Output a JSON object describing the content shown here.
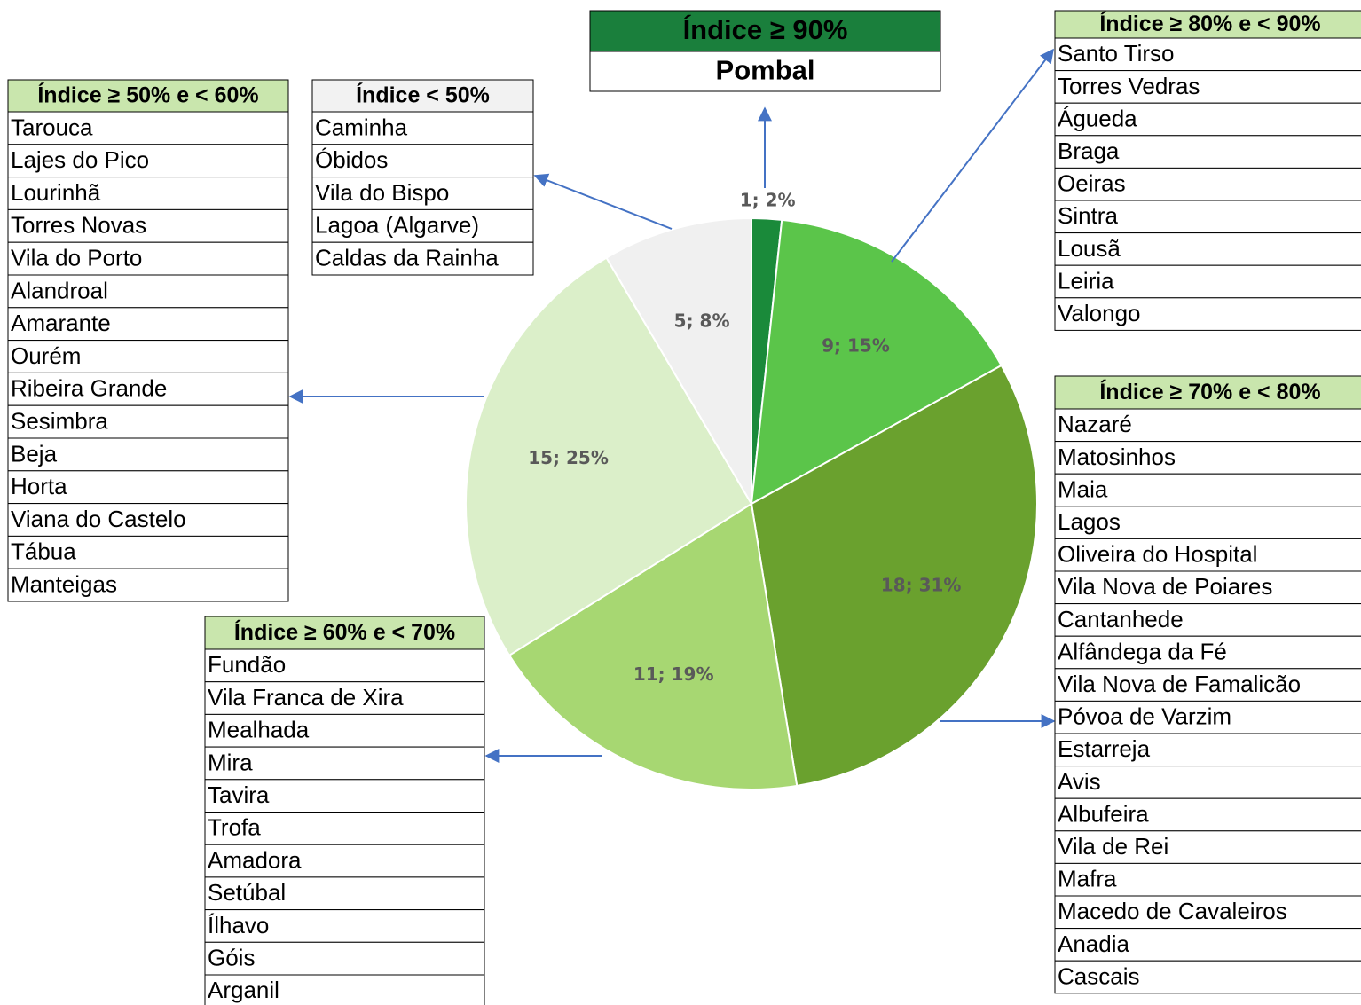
{
  "chart_data": {
    "type": "pie",
    "values": [
      1,
      9,
      18,
      11,
      15,
      5
    ],
    "value_labels": [
      "1; 2%",
      "9; 15%",
      "18; 31%",
      "11; 19%",
      "15; 25%",
      "5; 8%"
    ],
    "colors": [
      "#1a8a3a",
      "#5bc54a",
      "#6aa12e",
      "#a7d772",
      "#dbefc9",
      "#f0f0f0"
    ]
  },
  "tables": [
    {
      "header": "Índice ≥ 90%",
      "rows": [
        "Pombal"
      ]
    },
    {
      "header": "Índice ≥ 80% e < 90%",
      "rows": [
        "Santo Tirso",
        "Torres Vedras",
        "Águeda",
        "Braga",
        "Oeiras",
        "Sintra",
        "Lousã",
        "Leiria",
        "Valongo"
      ]
    },
    {
      "header": "Índice ≥ 70% e < 80%",
      "rows": [
        "Nazaré",
        "Matosinhos",
        "Maia",
        "Lagos",
        "Oliveira do Hospital",
        "Vila Nova de Poiares",
        "Cantanhede",
        "Alfândega da Fé",
        "Vila Nova de Famalicão",
        "Póvoa de Varzim",
        "Estarreja",
        "Avis",
        "Albufeira",
        "Vila de Rei",
        "Mafra",
        "Macedo de Cavaleiros",
        "Anadia",
        "Cascais"
      ]
    },
    {
      "header": "Índice ≥ 60% e < 70%",
      "rows": [
        "Fundão",
        "Vila Franca de Xira",
        "Mealhada",
        "Mira",
        "Tavira",
        "Trofa",
        "Amadora",
        "Setúbal",
        "Ílhavo",
        "Góis",
        "Arganil"
      ]
    },
    {
      "header": "Índice ≥ 50% e < 60%",
      "rows": [
        "Tarouca",
        "Lajes do Pico",
        "Lourinhã",
        "Torres Novas",
        "Vila do Porto",
        "Alandroal",
        "Amarante",
        "Ourém",
        "Ribeira Grande",
        "Sesimbra",
        "Beja",
        "Horta",
        "Viana do Castelo",
        "Tábua",
        "Manteigas"
      ]
    },
    {
      "header": "Índice < 50%",
      "rows": [
        "Caminha",
        "Óbidos",
        "Vila do Bispo",
        "Lagoa (Algarve)",
        "Caldas da Rainha"
      ]
    }
  ]
}
